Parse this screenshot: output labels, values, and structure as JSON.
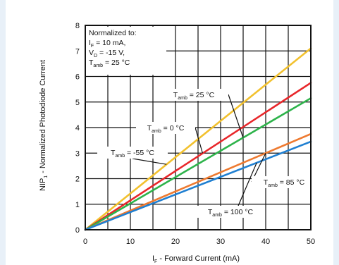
{
  "chart_data": {
    "type": "line",
    "xlabel": "I_F - Forward Current (mA)",
    "xlabel_main": "I",
    "xlabel_sub": "F",
    "xlabel_rest": " - Forward Current (mA)",
    "ylabel_main": "NIP",
    "ylabel_sub": "1",
    "ylabel_rest": " - Normalized Photodiode Current",
    "xlim": [
      0,
      50
    ],
    "ylim": [
      0,
      8
    ],
    "xticks": [
      "0",
      "10",
      "20",
      "30",
      "40",
      "50"
    ],
    "yticks": [
      "0",
      "1",
      "2",
      "3",
      "4",
      "5",
      "6",
      "7",
      "8"
    ],
    "grid": true,
    "normalization": {
      "line1": "Normalized to:",
      "line2_main": "I",
      "line2_sub": "F",
      "line2_rest": " = 10 mA,",
      "line3_main": "V",
      "line3_sub": "D",
      "line3_rest": " = -15 V,",
      "line4_main": "T",
      "line4_sub": "amb",
      "line4_rest": " = 25 °C"
    },
    "series": [
      {
        "id": "s-55",
        "color": "#f2c12e",
        "x": [
          0,
          50
        ],
        "y": [
          0,
          7.1
        ],
        "label_main": "T",
        "label_sub": "amb",
        "label_rest": " = -55 °C"
      },
      {
        "id": "s0",
        "color": "#e8262a",
        "x": [
          0,
          50
        ],
        "y": [
          0,
          5.75
        ],
        "label_main": "T",
        "label_sub": "amb",
        "label_rest": " = 0 °C"
      },
      {
        "id": "s25",
        "color": "#2db34a",
        "x": [
          0,
          50
        ],
        "y": [
          0,
          5.15
        ],
        "label_main": "T",
        "label_sub": "amb",
        "label_rest": " = 25 °C"
      },
      {
        "id": "s85",
        "color": "#ee7a30",
        "x": [
          0,
          50
        ],
        "y": [
          0,
          3.75
        ],
        "label_main": "T",
        "label_sub": "amb",
        "label_rest": " = 85 °C"
      },
      {
        "id": "s100",
        "color": "#1f7fd1",
        "x": [
          0,
          50
        ],
        "y": [
          0,
          3.45
        ],
        "label_main": "T",
        "label_sub": "amb",
        "label_rest": " = 100 °C"
      }
    ]
  }
}
